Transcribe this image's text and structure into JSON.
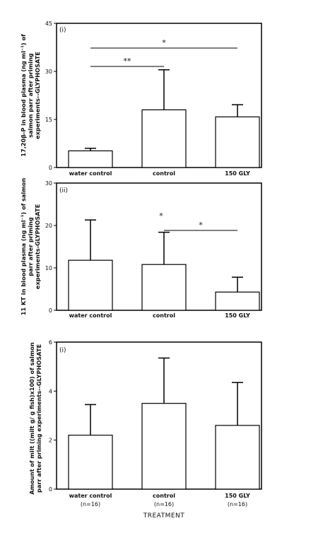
{
  "chart_data": [
    {
      "type": "bar",
      "panel_label": "(i)",
      "categories": [
        "water control",
        "control",
        "150 GLY"
      ],
      "values": [
        5.2,
        18.0,
        15.8
      ],
      "errors": [
        0.8,
        12.5,
        3.8
      ],
      "ylabel_lines": [
        "17,20β-P in blood plasma (ng ml⁻¹) of",
        "salmon parr after priming",
        "experiments--GLYPHOSATE"
      ],
      "ylim": [
        0,
        45
      ],
      "yticks": [
        "0",
        "15",
        "30",
        "45"
      ],
      "significance": [
        {
          "from": 0,
          "to": 1,
          "label": "**"
        },
        {
          "from": 0,
          "to": 2,
          "label": "*"
        }
      ]
    },
    {
      "type": "bar",
      "panel_label": "(ii)",
      "categories": [
        "water control",
        "control",
        "150 GLY"
      ],
      "values": [
        11.8,
        10.8,
        4.3
      ],
      "errors": [
        9.5,
        7.6,
        3.5
      ],
      "ylabel_lines": [
        "11 KT in blood plasma (ng ml⁻¹) of salmon",
        "parr after priming",
        "experiments-GLYPHOSATE"
      ],
      "ylim": [
        0,
        30
      ],
      "yticks": [
        "0",
        "10",
        "20",
        "30"
      ],
      "significance": [
        {
          "from": 1,
          "to": 2,
          "label": "*"
        }
      ],
      "extra_marks": [
        "*"
      ]
    },
    {
      "type": "bar",
      "panel_label": "(i)",
      "categories": [
        "water control",
        "control",
        "150 GLY"
      ],
      "sample_sizes": [
        "(n=16)",
        "(n=16)",
        "(n=16)"
      ],
      "values": [
        2.2,
        3.5,
        2.6
      ],
      "errors": [
        1.25,
        1.85,
        1.75
      ],
      "ylabel_lines": [
        "Amount of milt ((milt g/ g fish)x100) of salmon",
        "parr after priming experiments--GLYPHOSATE"
      ],
      "ylim": [
        0,
        6
      ],
      "yticks": [
        "0",
        "2",
        "4",
        "6"
      ],
      "significance": []
    }
  ],
  "xlabel": "TREATMENT"
}
